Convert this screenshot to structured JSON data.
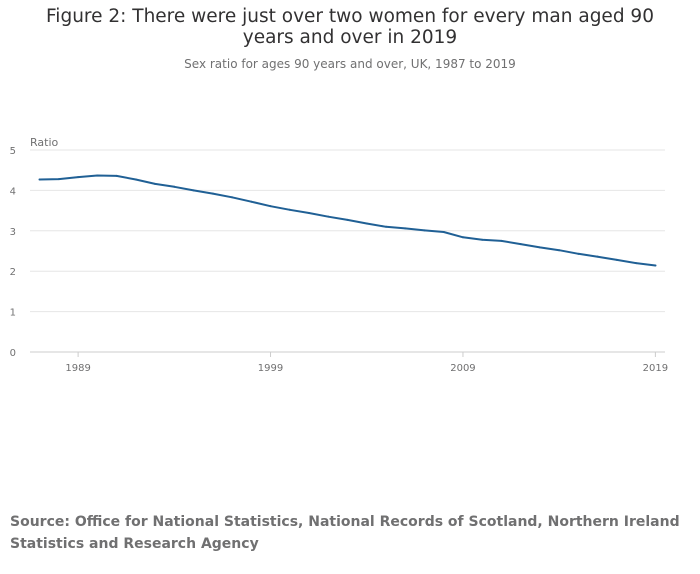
{
  "header": {
    "title": "Figure 2: There were just over two women for every man aged 90 years and over in 2019",
    "subtitle": "Sex ratio for ages 90 years and over, UK, 1987 to 2019"
  },
  "footer": {
    "source": "Source: Office for National Statistics, National Records of Scotland, Northern Ireland Statistics and Research Agency"
  },
  "colors": {
    "line": "#206095",
    "grid": "#e6e6e6",
    "axis": "#cccccc",
    "text": "#707071"
  },
  "chart_data": {
    "type": "line",
    "title": "Figure 2: There were just over two women for every man aged 90 years and over in 2019",
    "subtitle": "Sex ratio for ages 90 years and over, UK, 1987 to 2019",
    "xlabel": "",
    "ylabel": "Ratio",
    "xlim": [
      1986.5,
      2019.5
    ],
    "ylim": [
      0,
      5
    ],
    "x_ticks": [
      "1989",
      "1999",
      "2009",
      "2019"
    ],
    "y_ticks": [
      "0",
      "1",
      "2",
      "3",
      "4",
      "5"
    ],
    "grid": true,
    "legend": "none",
    "series": [
      {
        "x": [
          1987,
          1988,
          1989,
          1990,
          1991,
          1992,
          1993,
          1994,
          1995,
          1996,
          1997,
          1998,
          1999,
          2000,
          2001,
          2002,
          2003,
          2004,
          2005,
          2006,
          2007,
          2008,
          2009,
          2010,
          2011,
          2012,
          2013,
          2014,
          2015,
          2016,
          2017,
          2018,
          2019
        ],
        "y": [
          4.27,
          4.28,
          4.33,
          4.37,
          4.36,
          4.27,
          4.16,
          4.09,
          4.0,
          3.92,
          3.83,
          3.72,
          3.61,
          3.52,
          3.44,
          3.35,
          3.27,
          3.18,
          3.1,
          3.06,
          3.01,
          2.97,
          2.84,
          2.78,
          2.75,
          2.67,
          2.59,
          2.52,
          2.43,
          2.36,
          2.28,
          2.2,
          2.14
        ]
      }
    ]
  }
}
